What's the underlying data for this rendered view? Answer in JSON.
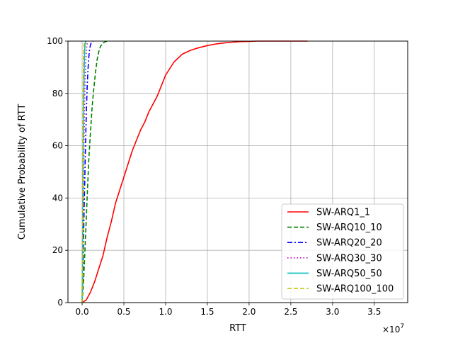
{
  "chart_data": {
    "type": "line",
    "title": "",
    "xlabel": "RTT",
    "ylabel": "Cumulative Probability of RTT",
    "x_multiplier_label": "×10",
    "x_multiplier_exponent": "7",
    "xlim": [
      -0.17,
      3.9
    ],
    "ylim": [
      0,
      100
    ],
    "x_scale_factor": 10000000,
    "xticks": [
      0.0,
      0.5,
      1.0,
      1.5,
      2.0,
      2.5,
      3.0,
      3.5
    ],
    "xtick_labels": [
      "0.0",
      "0.5",
      "1.0",
      "1.5",
      "2.0",
      "2.5",
      "3.0",
      "3.5"
    ],
    "yticks": [
      0,
      20,
      40,
      60,
      80,
      100
    ],
    "ytick_labels": [
      "0",
      "20",
      "40",
      "60",
      "80",
      "100"
    ],
    "grid": true,
    "legend_position": "bottom-right",
    "series": [
      {
        "name": "SW-ARQ1_1",
        "color": "#ff0000",
        "dash": "solid",
        "x": [
          0.0,
          0.05,
          0.1,
          0.15,
          0.2,
          0.25,
          0.3,
          0.35,
          0.4,
          0.45,
          0.5,
          0.55,
          0.6,
          0.65,
          0.7,
          0.75,
          0.8,
          0.85,
          0.9,
          0.95,
          1.0,
          1.1,
          1.2,
          1.3,
          1.4,
          1.5,
          1.6,
          1.7,
          1.8,
          1.9,
          2.0,
          2.1,
          2.2,
          2.3,
          2.4,
          2.5,
          2.6,
          2.7
        ],
        "y": [
          0,
          1,
          4,
          8,
          13,
          18,
          25,
          31,
          38,
          43,
          48,
          53,
          58,
          62,
          66,
          69,
          73,
          76,
          79,
          83,
          87,
          92,
          95,
          96.5,
          97.5,
          98.3,
          98.9,
          99.3,
          99.6,
          99.8,
          99.9,
          100,
          100,
          100,
          100,
          100,
          100,
          100
        ]
      },
      {
        "name": "SW-ARQ10_10",
        "color": "#008000",
        "dash": "dashed",
        "x": [
          0.0,
          0.02,
          0.04,
          0.06,
          0.08,
          0.1,
          0.12,
          0.14,
          0.16,
          0.18,
          0.2,
          0.22,
          0.25,
          0.28,
          0.3
        ],
        "y": [
          0,
          10,
          25,
          40,
          55,
          65,
          75,
          82,
          88,
          93,
          96,
          98,
          99.3,
          99.8,
          100
        ]
      },
      {
        "name": "SW-ARQ20_20",
        "color": "#0000ff",
        "dash": "dashdot",
        "x": [
          0.0,
          0.01,
          0.02,
          0.03,
          0.04,
          0.05,
          0.06,
          0.07,
          0.08,
          0.09,
          0.1,
          0.11,
          0.12,
          0.13
        ],
        "y": [
          0,
          15,
          30,
          45,
          60,
          72,
          82,
          89,
          94,
          97,
          98.5,
          99.4,
          99.8,
          100
        ]
      },
      {
        "name": "SW-ARQ30_30",
        "color": "#bf00bf",
        "dash": "dotted",
        "x": [
          0.0,
          0.01,
          0.02,
          0.03,
          0.04,
          0.05,
          0.06,
          0.07
        ],
        "y": [
          0,
          25,
          55,
          78,
          90,
          96,
          99,
          100
        ]
      },
      {
        "name": "SW-ARQ50_50",
        "color": "#00bfbf",
        "dash": "solid",
        "x": [
          0.0,
          0.005,
          0.01,
          0.015,
          0.02,
          0.025,
          0.03,
          0.035,
          0.04,
          0.045
        ],
        "y": [
          0,
          20,
          45,
          65,
          80,
          90,
          96,
          99,
          99.8,
          100
        ]
      },
      {
        "name": "SW-ARQ100_100",
        "color": "#bfbf00",
        "dash": "dashed",
        "x": [
          0.0,
          0.004,
          0.008,
          0.012,
          0.016,
          0.02,
          0.025,
          0.03
        ],
        "y": [
          0,
          25,
          55,
          78,
          90,
          96,
          99.5,
          100
        ]
      }
    ]
  }
}
